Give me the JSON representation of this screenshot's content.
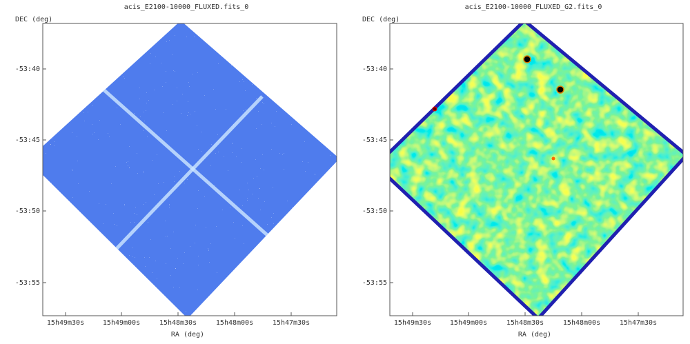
{
  "panels": [
    {
      "title": "acis_E2100-10000_FLUXED.fits_0",
      "y_label": "DEC (deg)",
      "x_label": "RA (deg)",
      "y_ticks": [
        "-53:40",
        "-53:45",
        "-53:50",
        "-53:55"
      ],
      "x_ticks": [
        "15h49m30s",
        "15h49m00s",
        "15h48m30s",
        "15h48m00s",
        "15h47m30s"
      ]
    },
    {
      "title": "acis_E2100-10000_FLUXED_G2.fits_0",
      "y_label": "DEC (deg)",
      "x_label": "RA (deg)",
      "y_ticks": [
        "-53:40",
        "-53:45",
        "-53:50",
        "-53:55"
      ],
      "x_ticks": [
        "15h49m30s",
        "15h49m00s",
        "15h48m30s",
        "15h48m00s",
        "15h47m30s"
      ]
    }
  ]
}
